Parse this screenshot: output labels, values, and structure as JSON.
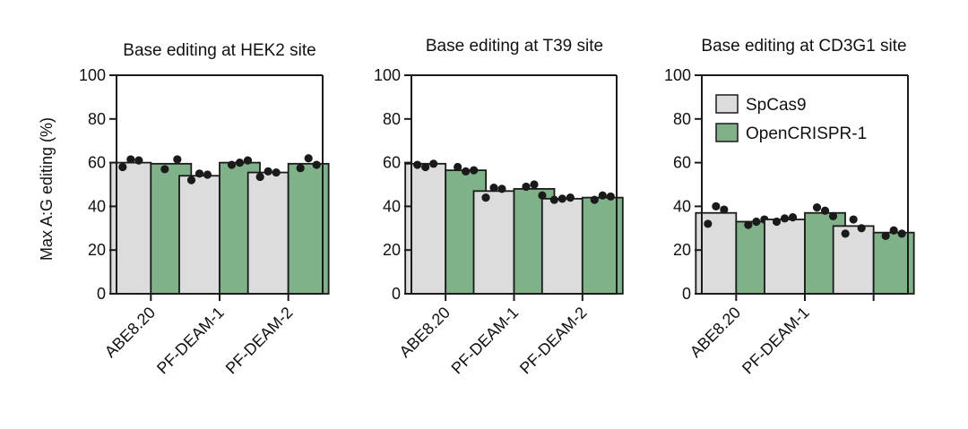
{
  "y_axis_label": "Max A:G editing (%)",
  "colors": {
    "spcas9": "#dcdcdc",
    "opencrispr": "#80b28a",
    "dot": "#1a1a1a"
  },
  "chart_data": [
    {
      "type": "bar",
      "title": "Base editing at HEK2 site",
      "ylabel": "Max A:G editing (%)",
      "ylim": [
        0,
        100
      ],
      "yticks": [
        0,
        20,
        40,
        60,
        80,
        100
      ],
      "categories": [
        "ABE8.20",
        "PF-DEAM-1",
        "PF-DEAM-2"
      ],
      "series": [
        {
          "name": "SpCas9",
          "values": [
            60,
            54,
            55.5
          ],
          "replicates": [
            [
              58,
              61.5,
              61
            ],
            [
              52,
              55,
              54.5
            ],
            [
              53.5,
              56,
              55.5
            ]
          ]
        },
        {
          "name": "OpenCRISPR-1",
          "values": [
            59.5,
            60,
            59.5
          ],
          "replicates": [
            [
              57,
              61.5
            ],
            [
              59,
              60,
              61
            ],
            [
              57.5,
              62,
              59
            ]
          ]
        }
      ]
    },
    {
      "type": "bar",
      "title": "Base editing at T39 site",
      "ylabel": "",
      "ylim": [
        0,
        100
      ],
      "yticks": [
        0,
        20,
        40,
        60,
        80,
        100
      ],
      "categories": [
        "ABE8.20",
        "PF-DEAM-1",
        "PF-DEAM-2"
      ],
      "series": [
        {
          "name": "SpCas9",
          "values": [
            59.5,
            47,
            43.5
          ],
          "replicates": [
            [
              59,
              58,
              59.5
            ],
            [
              44,
              48.5,
              48
            ],
            [
              43,
              43.5,
              44
            ]
          ]
        },
        {
          "name": "OpenCRISPR-1",
          "values": [
            56.5,
            48,
            44
          ],
          "replicates": [
            [
              58,
              56,
              56.5
            ],
            [
              49,
              50,
              45
            ],
            [
              43,
              45,
              44.5
            ]
          ]
        }
      ]
    },
    {
      "type": "bar",
      "title": "Base editing at CD3G1 site",
      "ylabel": "",
      "ylim": [
        0,
        100
      ],
      "yticks": [
        0,
        20,
        40,
        60,
        80,
        100
      ],
      "categories": [
        "ABE8.20",
        "PF-DEAM-1",
        ""
      ],
      "legend": {
        "position": "top-left",
        "entries": [
          "SpCas9",
          "OpenCRISPR-1"
        ]
      },
      "series": [
        {
          "name": "SpCas9",
          "values": [
            37,
            34,
            31
          ],
          "replicates": [
            [
              32,
              40,
              38.5
            ],
            [
              33,
              34.5,
              35
            ],
            [
              27.5,
              34,
              30
            ]
          ]
        },
        {
          "name": "OpenCRISPR-1",
          "values": [
            33,
            37,
            28
          ],
          "replicates": [
            [
              31.5,
              33,
              34
            ],
            [
              39.5,
              38,
              35.5
            ],
            [
              26.5,
              29,
              27.5
            ]
          ]
        }
      ]
    }
  ]
}
